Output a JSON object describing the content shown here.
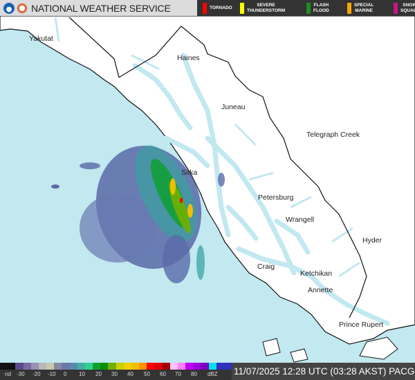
{
  "header": {
    "title": "NATIONAL WEATHER SERVICE",
    "logos": [
      "noaa-logo",
      "nws-logo"
    ]
  },
  "warnings": [
    {
      "label": "TORNADO",
      "color": "#ff0000"
    },
    {
      "label": "SEVERE\nTHUNDERSTORM",
      "color": "#ffff00"
    },
    {
      "label": "FLASH\nFLOOD",
      "color": "#228b22"
    },
    {
      "label": "SPECIAL\nMARINE",
      "color": "#ffa500"
    },
    {
      "label": "SNOW\nSQUALL",
      "color": "#c71585"
    }
  ],
  "map": {
    "colors": {
      "water": "#c2e8f0",
      "land": "#ffffff",
      "coast": "#111111"
    },
    "cities": [
      "Yakutat",
      "Haines",
      "Juneau",
      "Telegraph Creek",
      "Sitka",
      "Petersburg",
      "Wrangell",
      "Hyder",
      "Craig",
      "Ketchikan",
      "Annette",
      "Prince Rupert"
    ]
  },
  "scale": {
    "ticks": [
      "nd",
      "-30",
      "-20",
      "-10",
      "0",
      "10",
      "20",
      "30",
      "40",
      "50",
      "60",
      "70",
      "80",
      "dBZ"
    ],
    "colors": [
      "#111111",
      "#111111",
      "#5a4a8a",
      "#7a6aa0",
      "#9a90b0",
      "#b8b8b8",
      "#c8c8b0",
      "#8888a0",
      "#6a78a8",
      "#5a8ab0",
      "#40b0a0",
      "#30d090",
      "#10a030",
      "#089000",
      "#70b000",
      "#c8d000",
      "#f0d000",
      "#f0c000",
      "#ff9000",
      "#ff0000",
      "#e00000",
      "#a00000",
      "#ffc0ff",
      "#ff80ff",
      "#c000ff",
      "#a000e0",
      "#8000c0",
      "#00e0f0",
      "#3030c0",
      "#3030c0"
    ]
  },
  "timestamp": "11/07/2025 12:28 UTC (03:28 AKST) PACG"
}
